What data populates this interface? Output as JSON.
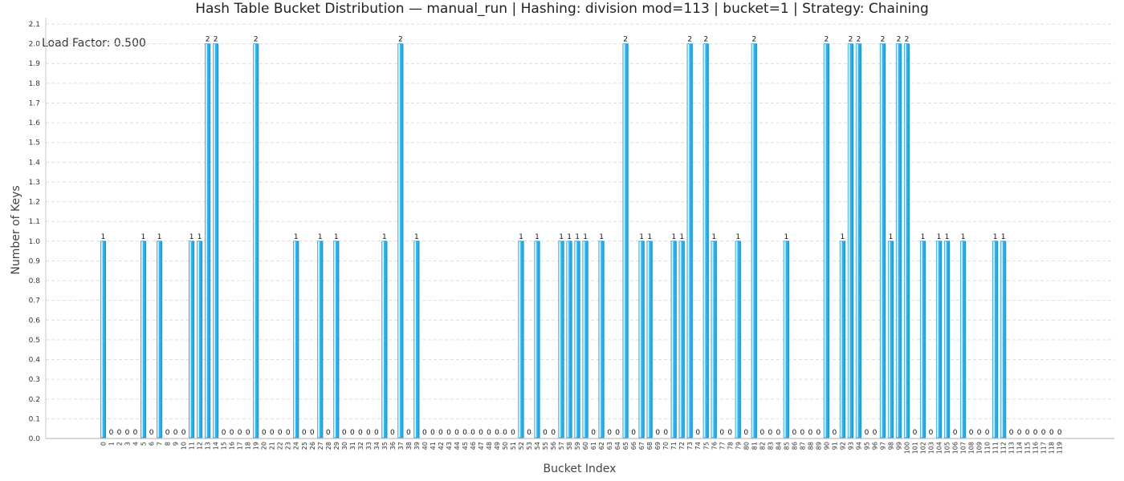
{
  "chart_data": {
    "type": "bar",
    "title": "Hash Table Bucket Distribution — manual_run | Hashing: division mod=113 | bucket=1 | Strategy: Chaining",
    "annotation": "Load Factor: 0.500",
    "xlabel": "Bucket Index",
    "ylabel": "Number of Keys",
    "ylim": [
      0,
      2.1
    ],
    "yticks": [
      "0.0",
      "0.1",
      "0.2",
      "0.3",
      "0.4",
      "0.5",
      "0.6",
      "0.7",
      "0.8",
      "0.9",
      "1.0",
      "1.1",
      "1.2",
      "1.3",
      "1.4",
      "1.5",
      "1.6",
      "1.7",
      "1.8",
      "1.9",
      "2.0",
      "2.1"
    ],
    "grid": true,
    "legend": "none",
    "categories": [
      "0",
      "1",
      "2",
      "3",
      "4",
      "5",
      "6",
      "7",
      "8",
      "9",
      "10",
      "11",
      "12",
      "13",
      "14",
      "15",
      "16",
      "17",
      "18",
      "19",
      "20",
      "21",
      "22",
      "23",
      "24",
      "25",
      "26",
      "27",
      "28",
      "29",
      "30",
      "31",
      "32",
      "33",
      "34",
      "35",
      "36",
      "37",
      "38",
      "39",
      "40",
      "41",
      "42",
      "43",
      "44",
      "45",
      "46",
      "47",
      "48",
      "49",
      "50",
      "51",
      "52",
      "53",
      "54",
      "55",
      "56",
      "57",
      "58",
      "59",
      "60",
      "61",
      "62",
      "63",
      "64",
      "65",
      "66",
      "67",
      "68",
      "69",
      "70",
      "71",
      "72",
      "73",
      "74",
      "75",
      "76",
      "77",
      "78",
      "79",
      "80",
      "81",
      "82",
      "83",
      "84",
      "85",
      "86",
      "87",
      "88",
      "89",
      "90",
      "91",
      "92",
      "93",
      "94",
      "95",
      "96",
      "97",
      "98",
      "99",
      "100",
      "101",
      "102",
      "103",
      "104",
      "105",
      "106",
      "107",
      "108",
      "109",
      "110",
      "111",
      "112",
      "113",
      "114",
      "115",
      "116",
      "117",
      "118",
      "119"
    ],
    "values": [
      1,
      0,
      0,
      0,
      0,
      1,
      0,
      1,
      0,
      0,
      0,
      1,
      1,
      2,
      2,
      0,
      0,
      0,
      0,
      2,
      0,
      0,
      0,
      0,
      1,
      0,
      0,
      1,
      0,
      1,
      0,
      0,
      0,
      0,
      0,
      1,
      0,
      2,
      0,
      1,
      0,
      0,
      0,
      0,
      0,
      0,
      0,
      0,
      0,
      0,
      0,
      0,
      1,
      0,
      1,
      0,
      0,
      1,
      1,
      1,
      1,
      0,
      1,
      0,
      0,
      2,
      0,
      1,
      1,
      0,
      0,
      1,
      1,
      2,
      0,
      2,
      1,
      0,
      0,
      1,
      0,
      2,
      0,
      0,
      0,
      1,
      0,
      0,
      0,
      0,
      2,
      0,
      1,
      2,
      2,
      0,
      0,
      2,
      1,
      2,
      2,
      0,
      1,
      0,
      1,
      1,
      0,
      1,
      0,
      0,
      0,
      1,
      1,
      0,
      0,
      0,
      0,
      0,
      0,
      0
    ],
    "color": "#35b6f0"
  }
}
